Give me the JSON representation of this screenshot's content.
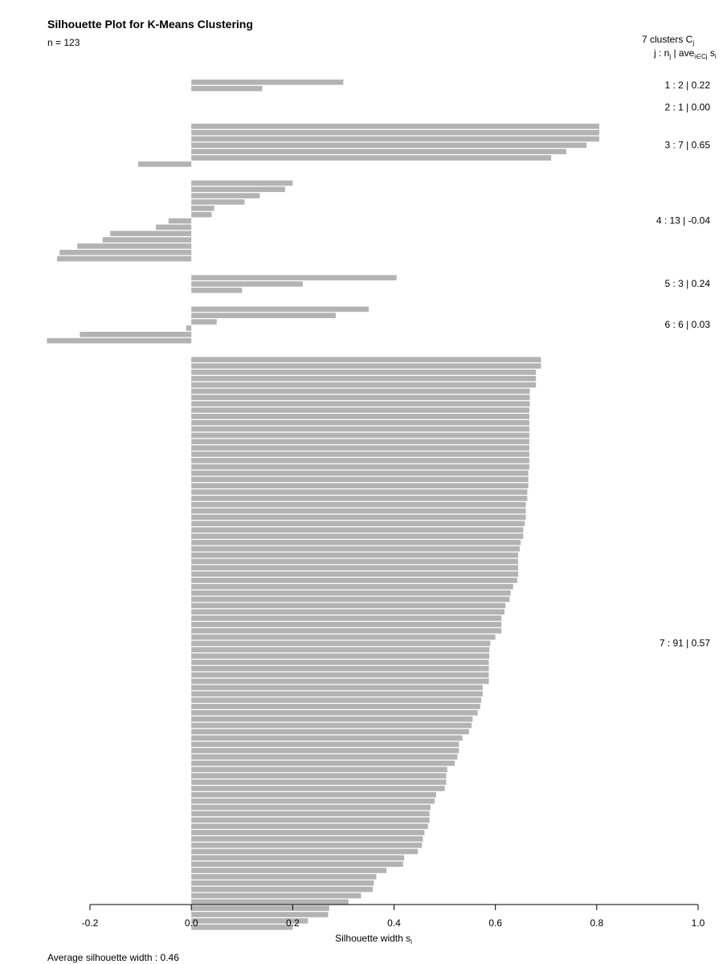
{
  "chart_data": {
    "type": "bar",
    "orientation": "horizontal",
    "title": "Silhouette Plot for K-Means Clustering",
    "subtitle": "n = 123",
    "xlabel": "Silhouette width s",
    "xlabel_subscript": "i",
    "xlim": [
      -0.2,
      1.0
    ],
    "xticks": [
      -0.2,
      0.0,
      0.2,
      0.4,
      0.6,
      0.8,
      1.0
    ],
    "xtick_labels": [
      "-0.2",
      "0.0",
      "0.2",
      "0.4",
      "0.6",
      "0.8",
      "1.0"
    ],
    "grid": false,
    "bar_color": "#b3b3b3",
    "legend": {
      "position": "top-right",
      "line1_text": "7  clusters  C",
      "line1_subscript": "j",
      "line2_a": "j :  n",
      "line2_a_sub": "j",
      "line2_b": " | ave",
      "line2_b_sub": "i∈Cj",
      "line2_c": "  s",
      "line2_c_sub": "i"
    },
    "clusters": [
      {
        "label": "1 :   2  |  0.22",
        "values": [
          0.3,
          0.14
        ]
      },
      {
        "label": "2 :   1  |  0.00",
        "values": [
          0.0
        ]
      },
      {
        "label": "3 :   7  |  0.65",
        "values": [
          0.805,
          0.805,
          0.805,
          0.78,
          0.74,
          0.71,
          -0.105
        ]
      },
      {
        "label": "4 :   13  |  -0.04",
        "values": [
          0.2,
          0.185,
          0.135,
          0.105,
          0.045,
          0.04,
          -0.045,
          -0.07,
          -0.16,
          -0.175,
          -0.225,
          -0.26,
          -0.265
        ]
      },
      {
        "label": "5 :   3  |  0.24",
        "values": [
          0.405,
          0.22,
          0.1
        ]
      },
      {
        "label": "6 :   6  |  0.03",
        "values": [
          0.35,
          0.285,
          0.05,
          -0.01,
          -0.22,
          -0.285
        ]
      },
      {
        "label": "7 :   91  |  0.57",
        "values": [
          0.69,
          0.69,
          0.68,
          0.68,
          0.68,
          0.668,
          0.668,
          0.668,
          0.667,
          0.667,
          0.667,
          0.667,
          0.667,
          0.667,
          0.667,
          0.667,
          0.667,
          0.667,
          0.665,
          0.665,
          0.665,
          0.663,
          0.663,
          0.66,
          0.66,
          0.66,
          0.658,
          0.655,
          0.655,
          0.65,
          0.648,
          0.645,
          0.645,
          0.645,
          0.645,
          0.643,
          0.635,
          0.63,
          0.628,
          0.62,
          0.618,
          0.612,
          0.612,
          0.612,
          0.6,
          0.59,
          0.588,
          0.588,
          0.587,
          0.587,
          0.587,
          0.587,
          0.575,
          0.575,
          0.572,
          0.57,
          0.565,
          0.555,
          0.553,
          0.548,
          0.535,
          0.528,
          0.528,
          0.525,
          0.52,
          0.505,
          0.503,
          0.503,
          0.5,
          0.483,
          0.48,
          0.472,
          0.47,
          0.47,
          0.467,
          0.46,
          0.457,
          0.455,
          0.447,
          0.42,
          0.418,
          0.385,
          0.365,
          0.36,
          0.358,
          0.335,
          0.31,
          0.272,
          0.27,
          0.23,
          0.2
        ]
      }
    ],
    "average_label": "Average silhouette width :  0.46"
  }
}
